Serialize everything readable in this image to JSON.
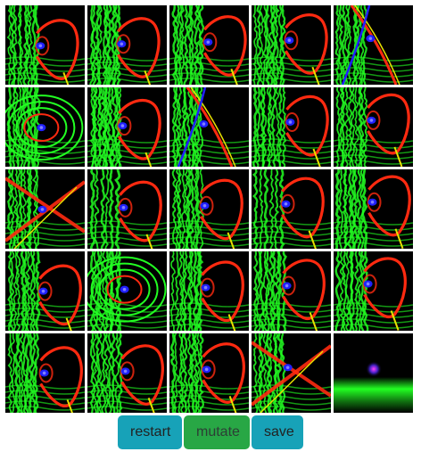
{
  "controls": {
    "restart_label": "restart",
    "mutate_label": "mutate",
    "save_label": "save"
  },
  "colors": {
    "restart": "#17a2b8",
    "mutate": "#28a745",
    "save": "#17a2b8",
    "tile_background": "#000000",
    "wave_green": "#22ff22",
    "wave_red": "#ff2a10",
    "wave_yellow": "#e8e000",
    "core_blue": "#2020ff"
  },
  "gallery": {
    "variants": [
      "standard",
      "standard",
      "standard",
      "standard",
      "diagonal",
      "ring",
      "dense",
      "diagonal-cross",
      "standard",
      "standard",
      "cross",
      "sparse",
      "standard",
      "sparse",
      "standard",
      "standard",
      "ring",
      "standard",
      "standard",
      "standard",
      "standard",
      "standard",
      "standard",
      "burst",
      "glow"
    ]
  }
}
